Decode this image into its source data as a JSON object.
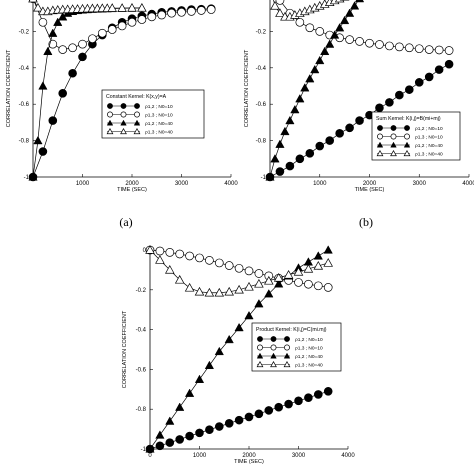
{
  "chart_data": [
    {
      "type": "line",
      "caption": "(a)",
      "xlabel": "TIME (SEC)",
      "ylabel": "CORRELATION COEFFICIENT",
      "xlim": [
        0,
        4000
      ],
      "ylim": [
        -1,
        0
      ],
      "xticks": [
        "1000",
        "2000",
        "3000",
        "4000"
      ],
      "yticks": [
        "-0.2",
        "-0.4",
        "-0.6",
        "-0.8",
        "-1"
      ],
      "legend": {
        "title": "Constant Kernel: K(x,y)=A",
        "placement": "center",
        "entries": [
          "ρ1,2 ; N0=10",
          "ρ1,3 ; N0=10",
          "ρ1,2 ; N0=40",
          "ρ1,3 ; N0=40"
        ]
      },
      "series": [
        {
          "marker": "filled-circle",
          "x": [
            0,
            200,
            400,
            600,
            800,
            1000,
            1200,
            1400,
            1600,
            1800,
            2000,
            2200,
            2400,
            2600,
            2800,
            3000,
            3200,
            3400,
            3600
          ],
          "y": [
            -1,
            -0.86,
            -0.69,
            -0.54,
            -0.43,
            -0.34,
            -0.27,
            -0.22,
            -0.18,
            -0.15,
            -0.13,
            -0.115,
            -0.105,
            -0.095,
            -0.09,
            -0.085,
            -0.08,
            -0.078,
            -0.075
          ]
        },
        {
          "marker": "open-circle",
          "x": [
            0,
            200,
            400,
            600,
            800,
            1000,
            1200,
            1400,
            1600,
            1800,
            2000,
            2200,
            2400,
            2600,
            2800,
            3000,
            3200,
            3400,
            3600
          ],
          "y": [
            -0.02,
            -0.15,
            -0.27,
            -0.3,
            -0.29,
            -0.27,
            -0.24,
            -0.21,
            -0.19,
            -0.17,
            -0.15,
            -0.135,
            -0.12,
            -0.11,
            -0.1,
            -0.095,
            -0.09,
            -0.085,
            -0.08
          ]
        },
        {
          "marker": "filled-triangle",
          "x": [
            0,
            100,
            200,
            300,
            400,
            500,
            600,
            700,
            800,
            900,
            1000,
            1100,
            1200,
            1300,
            1400,
            1500,
            1600,
            1800,
            2000,
            2200
          ],
          "y": [
            -1,
            -0.8,
            -0.5,
            -0.31,
            -0.21,
            -0.15,
            -0.12,
            -0.1,
            -0.09,
            -0.085,
            -0.082,
            -0.08,
            -0.078,
            -0.077,
            -0.076,
            -0.075,
            -0.074,
            -0.073,
            -0.072,
            -0.071
          ]
        },
        {
          "marker": "open-triangle",
          "x": [
            0,
            100,
            200,
            300,
            400,
            500,
            600,
            700,
            800,
            900,
            1000,
            1100,
            1200,
            1300,
            1400,
            1500,
            1600,
            1800,
            2000,
            2200
          ],
          "y": [
            -0.02,
            -0.07,
            -0.09,
            -0.09,
            -0.085,
            -0.082,
            -0.08,
            -0.079,
            -0.078,
            -0.077,
            -0.076,
            -0.075,
            -0.074,
            -0.074,
            -0.073,
            -0.073,
            -0.072,
            -0.072,
            -0.071,
            -0.071
          ]
        }
      ]
    },
    {
      "type": "line",
      "caption": "(b)",
      "xlabel": "TIME (SEC)",
      "ylabel": "CORRELATION COEFFICIENT",
      "xlim": [
        0,
        4000
      ],
      "ylim": [
        -1,
        0
      ],
      "xticks": [
        "1000",
        "2000",
        "3000",
        "4000"
      ],
      "yticks": [
        "-0.2",
        "-0.4",
        "-0.6",
        "-0.8",
        "-1"
      ],
      "legend": {
        "title": "Sum Kernel: K(i,j)=B(mi+mj)",
        "placement": "bottom-right",
        "entries": [
          "ρ1,2 ; N0=10",
          "ρ1,3 ; N0=10",
          "ρ1,2 ; N0=40",
          "ρ1,3 ; N0=40"
        ]
      },
      "series": [
        {
          "marker": "filled-circle",
          "x": [
            0,
            200,
            400,
            600,
            800,
            1000,
            1200,
            1400,
            1600,
            1800,
            2000,
            2200,
            2400,
            2600,
            2800,
            3000,
            3200,
            3400,
            3600
          ],
          "y": [
            -1,
            -0.97,
            -0.94,
            -0.9,
            -0.87,
            -0.83,
            -0.8,
            -0.76,
            -0.73,
            -0.69,
            -0.66,
            -0.62,
            -0.59,
            -0.55,
            -0.52,
            -0.48,
            -0.45,
            -0.41,
            -0.38
          ]
        },
        {
          "marker": "open-circle",
          "x": [
            0,
            200,
            400,
            600,
            800,
            1000,
            1200,
            1400,
            1600,
            1800,
            2000,
            2200,
            2400,
            2600,
            2800,
            3000,
            3200,
            3400,
            3600
          ],
          "y": [
            0.05,
            -0.03,
            -0.1,
            -0.15,
            -0.18,
            -0.2,
            -0.22,
            -0.235,
            -0.245,
            -0.255,
            -0.265,
            -0.272,
            -0.28,
            -0.285,
            -0.29,
            -0.295,
            -0.3,
            -0.302,
            -0.305
          ]
        },
        {
          "marker": "filled-triangle",
          "x": [
            0,
            100,
            200,
            300,
            400,
            500,
            600,
            700,
            800,
            900,
            1000,
            1100,
            1200,
            1300,
            1400,
            1500,
            1600,
            1700,
            1800
          ],
          "y": [
            -1,
            -0.9,
            -0.82,
            -0.75,
            -0.69,
            -0.63,
            -0.57,
            -0.51,
            -0.46,
            -0.41,
            -0.36,
            -0.31,
            -0.27,
            -0.22,
            -0.18,
            -0.14,
            -0.1,
            -0.06,
            -0.02
          ]
        },
        {
          "marker": "open-triangle",
          "x": [
            0,
            100,
            200,
            300,
            400,
            500,
            600,
            700,
            800,
            900,
            1000,
            1100,
            1200,
            1300,
            1400,
            1500,
            1600,
            1700,
            1800
          ],
          "y": [
            0.05,
            -0.06,
            -0.1,
            -0.12,
            -0.12,
            -0.11,
            -0.1,
            -0.09,
            -0.08,
            -0.07,
            -0.06,
            -0.05,
            -0.04,
            -0.03,
            -0.02,
            -0.01,
            0.0,
            0.01,
            0.02
          ]
        }
      ]
    },
    {
      "type": "line",
      "caption": "",
      "xlabel": "TIME (SEC)",
      "ylabel": "CORRELATION COEFFICIENT",
      "xlim": [
        0,
        4000
      ],
      "ylim": [
        -1,
        0
      ],
      "xticks": [
        "0",
        "1000",
        "2000",
        "3000",
        "4000"
      ],
      "yticks": [
        "0",
        "-0.2",
        "-0.4",
        "-0.6",
        "-0.8",
        "-1"
      ],
      "legend": {
        "title": "Product Kernel: K(i,j)=C(mi.mj)",
        "placement": "right",
        "entries": [
          "ρ1,2 ; N0=10",
          "ρ1,3 ; N0=10",
          "ρ1,2 ; N0=40",
          "ρ1,3 ; N0=40"
        ]
      },
      "series": [
        {
          "marker": "filled-circle",
          "x": [
            0,
            200,
            400,
            600,
            800,
            1000,
            1200,
            1400,
            1600,
            1800,
            2000,
            2200,
            2400,
            2600,
            2800,
            3000,
            3200,
            3400,
            3600
          ],
          "y": [
            -1,
            -0.984,
            -0.968,
            -0.952,
            -0.935,
            -0.919,
            -0.903,
            -0.887,
            -0.871,
            -0.855,
            -0.839,
            -0.823,
            -0.806,
            -0.79,
            -0.774,
            -0.758,
            -0.742,
            -0.726,
            -0.71
          ]
        },
        {
          "marker": "open-circle",
          "x": [
            0,
            200,
            400,
            600,
            800,
            1000,
            1200,
            1400,
            1600,
            1800,
            2000,
            2200,
            2400,
            2600,
            2800,
            3000,
            3200,
            3400,
            3600
          ],
          "y": [
            0,
            -0.005,
            -0.012,
            -0.02,
            -0.03,
            -0.04,
            -0.052,
            -0.065,
            -0.078,
            -0.092,
            -0.105,
            -0.118,
            -0.13,
            -0.142,
            -0.153,
            -0.163,
            -0.172,
            -0.18,
            -0.188
          ]
        },
        {
          "marker": "filled-triangle",
          "x": [
            0,
            200,
            400,
            600,
            800,
            1000,
            1200,
            1400,
            1600,
            1800,
            2000,
            2200,
            2400,
            2600,
            2800,
            3000,
            3200,
            3400,
            3600
          ],
          "y": [
            -1,
            -0.93,
            -0.86,
            -0.79,
            -0.72,
            -0.65,
            -0.58,
            -0.51,
            -0.45,
            -0.39,
            -0.33,
            -0.27,
            -0.22,
            -0.17,
            -0.13,
            -0.09,
            -0.06,
            -0.03,
            0
          ]
        },
        {
          "marker": "open-triangle",
          "x": [
            0,
            200,
            400,
            600,
            800,
            1000,
            1200,
            1400,
            1600,
            1800,
            2000,
            2200,
            2400,
            2600,
            2800,
            3000,
            3200,
            3400,
            3600
          ],
          "y": [
            0,
            -0.05,
            -0.1,
            -0.15,
            -0.19,
            -0.21,
            -0.215,
            -0.215,
            -0.21,
            -0.2,
            -0.185,
            -0.17,
            -0.155,
            -0.14,
            -0.125,
            -0.11,
            -0.095,
            -0.08,
            -0.065
          ]
        }
      ]
    }
  ]
}
